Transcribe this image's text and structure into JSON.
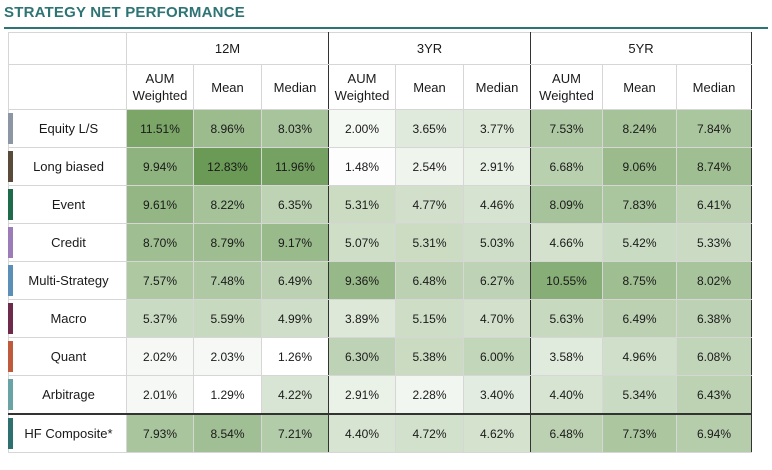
{
  "title": "STRATEGY NET PERFORMANCE",
  "groups": [
    "12M",
    "3YR",
    "5YR"
  ],
  "subheaders": [
    "AUM Weighted",
    "Mean",
    "Median"
  ],
  "rows": [
    {
      "name": "Equity L/S",
      "color": "#8c96a4",
      "values": [
        "11.51%",
        "8.96%",
        "8.03%",
        "2.00%",
        "3.65%",
        "3.77%",
        "7.53%",
        "8.24%",
        "7.84%"
      ],
      "heat": [
        11.51,
        8.96,
        8.03,
        2.0,
        3.65,
        3.77,
        7.53,
        8.24,
        7.84
      ]
    },
    {
      "name": "Long biased",
      "color": "#5a4a3a",
      "values": [
        "9.94%",
        "12.83%",
        "11.96%",
        "1.48%",
        "2.54%",
        "2.91%",
        "6.68%",
        "9.06%",
        "8.74%"
      ],
      "heat": [
        9.94,
        12.83,
        11.96,
        1.48,
        2.54,
        2.91,
        6.68,
        9.06,
        8.74
      ]
    },
    {
      "name": "Event",
      "color": "#1e6b4c",
      "values": [
        "9.61%",
        "8.22%",
        "6.35%",
        "5.31%",
        "4.77%",
        "4.46%",
        "8.09%",
        "7.83%",
        "6.41%"
      ],
      "heat": [
        9.61,
        8.22,
        6.35,
        5.31,
        4.77,
        4.46,
        8.09,
        7.83,
        6.41
      ]
    },
    {
      "name": "Credit",
      "color": "#9b7bb8",
      "values": [
        "8.70%",
        "8.79%",
        "9.17%",
        "5.07%",
        "5.31%",
        "5.03%",
        "4.66%",
        "5.42%",
        "5.33%"
      ],
      "heat": [
        8.7,
        8.79,
        9.17,
        5.07,
        5.31,
        5.03,
        4.66,
        5.42,
        5.33
      ]
    },
    {
      "name": "Multi-Strategy",
      "color": "#5b8fb8",
      "values": [
        "7.57%",
        "7.48%",
        "6.49%",
        "9.36%",
        "6.48%",
        "6.27%",
        "10.55%",
        "8.75%",
        "8.02%"
      ],
      "heat": [
        7.57,
        7.48,
        6.49,
        9.36,
        6.48,
        6.27,
        10.55,
        8.75,
        8.02
      ]
    },
    {
      "name": "Macro",
      "color": "#6e2a4a",
      "values": [
        "5.37%",
        "5.59%",
        "4.99%",
        "3.89%",
        "5.15%",
        "4.70%",
        "5.63%",
        "6.49%",
        "6.38%"
      ],
      "heat": [
        5.37,
        5.59,
        4.99,
        3.89,
        5.15,
        4.7,
        5.63,
        6.49,
        6.38
      ]
    },
    {
      "name": "Quant",
      "color": "#c05a3c",
      "values": [
        "2.02%",
        "2.03%",
        "1.26%",
        "6.30%",
        "5.38%",
        "6.00%",
        "3.58%",
        "4.96%",
        "6.08%"
      ],
      "heat": [
        2.02,
        2.03,
        1.26,
        6.3,
        5.38,
        6.0,
        3.58,
        4.96,
        6.08
      ]
    },
    {
      "name": "Arbitrage",
      "color": "#6aa3a6",
      "values": [
        "2.01%",
        "1.29%",
        "4.22%",
        "2.91%",
        "2.28%",
        "3.40%",
        "4.40%",
        "5.34%",
        "6.43%"
      ],
      "heat": [
        2.01,
        1.29,
        4.22,
        2.91,
        2.28,
        3.4,
        4.4,
        5.34,
        6.43
      ]
    },
    {
      "name": "HF Composite*",
      "color": "#2e6f6f",
      "values": [
        "7.93%",
        "8.54%",
        "7.21%",
        "4.40%",
        "4.72%",
        "4.62%",
        "6.48%",
        "7.73%",
        "6.94%"
      ],
      "heat": [
        7.93,
        8.54,
        7.21,
        4.4,
        4.72,
        4.62,
        6.48,
        7.73,
        6.94
      ]
    }
  ],
  "heat_colors": {
    "low": "#ffffff",
    "high": "#6a9a55"
  }
}
